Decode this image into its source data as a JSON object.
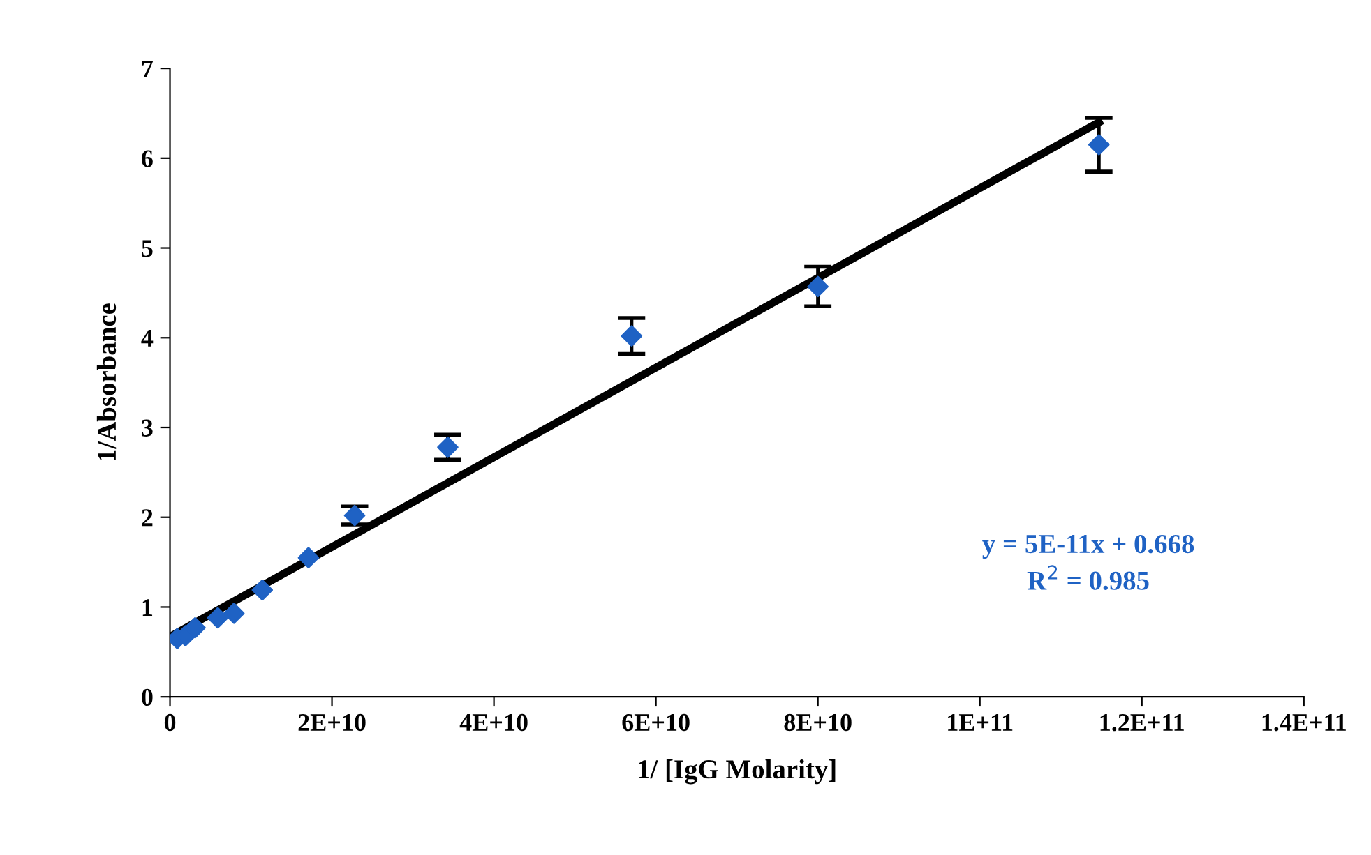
{
  "chart_data": {
    "type": "scatter",
    "xlabel": "1/ [IgG Molarity]",
    "ylabel": "1/Absorbance",
    "xlim": [
      0,
      140000000000.0
    ],
    "ylim": [
      0,
      7
    ],
    "xticks": [
      0,
      {
        "value": 20000000000.0,
        "label": "2E+10"
      },
      {
        "value": 40000000000.0,
        "label": "4E+10"
      },
      {
        "value": 60000000000.0,
        "label": "6E+10"
      },
      {
        "value": 80000000000.0,
        "label": "8E+10"
      },
      {
        "value": 100000000000.0,
        "label": "1E+11"
      },
      {
        "value": 120000000000.0,
        "label": "1.2E+11"
      },
      {
        "value": 140000000000.0,
        "label": "1.4E+11"
      }
    ],
    "yticks": [
      0,
      1,
      2,
      3,
      4,
      5,
      6,
      7
    ],
    "grid": false,
    "legend": false,
    "series": [
      {
        "color": "#1f62c4",
        "marker": "diamond",
        "x": [
          900000000.0,
          1900000000.0,
          3100000000.0,
          5900000000.0,
          7900000000.0,
          11400000000.0,
          17100000000.0,
          22800000000.0,
          34300000000.0,
          57000000000.0,
          80000000000.0,
          114700000000.0
        ],
        "values": [
          0.65,
          0.68,
          0.77,
          0.88,
          0.93,
          1.19,
          1.55,
          2.02,
          2.78,
          4.02,
          4.57,
          6.15
        ],
        "errors": [
          null,
          null,
          null,
          null,
          null,
          null,
          null,
          0.1,
          0.14,
          0.2,
          0.22,
          0.3
        ]
      },
      {
        "type": "line",
        "color": "#000000",
        "marker": "none",
        "line_style": "solid",
        "x": [
          0,
          114700000000.0
        ],
        "values": [
          0.67,
          6.4
        ]
      }
    ],
    "annotations": [
      "y = 5E-11x + 0.668\nR$^{2}$ = 0.985"
    ]
  }
}
